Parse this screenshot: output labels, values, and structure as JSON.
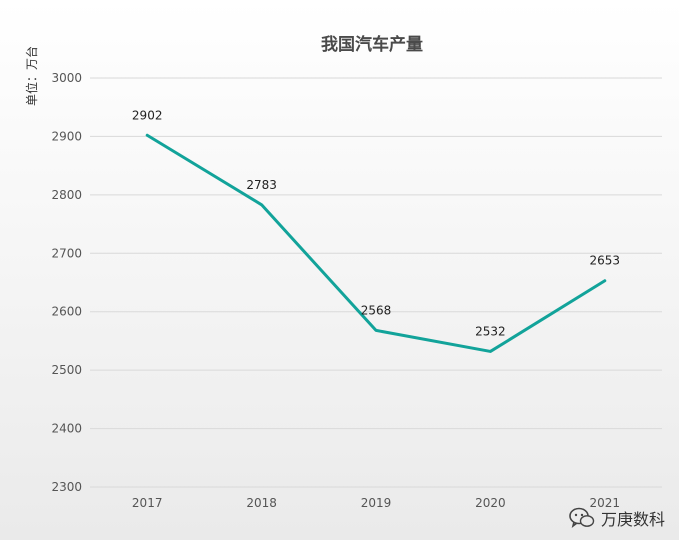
{
  "chart_data": {
    "type": "line",
    "title": "我国汽车产量",
    "ylabel": "单位：万台",
    "xlabel": "",
    "categories": [
      "2017",
      "2018",
      "2019",
      "2020",
      "2021"
    ],
    "series": [
      {
        "values": [
          2902,
          2783,
          2568,
          2532,
          2653
        ]
      }
    ],
    "ylim": [
      2300,
      3000
    ],
    "yticks": [
      2300,
      2400,
      2500,
      2600,
      2700,
      2800,
      2900,
      3000
    ],
    "grid": true,
    "color": "#12a39a"
  },
  "watermark": {
    "icon": "wechat-icon",
    "text": "万庚数科"
  }
}
